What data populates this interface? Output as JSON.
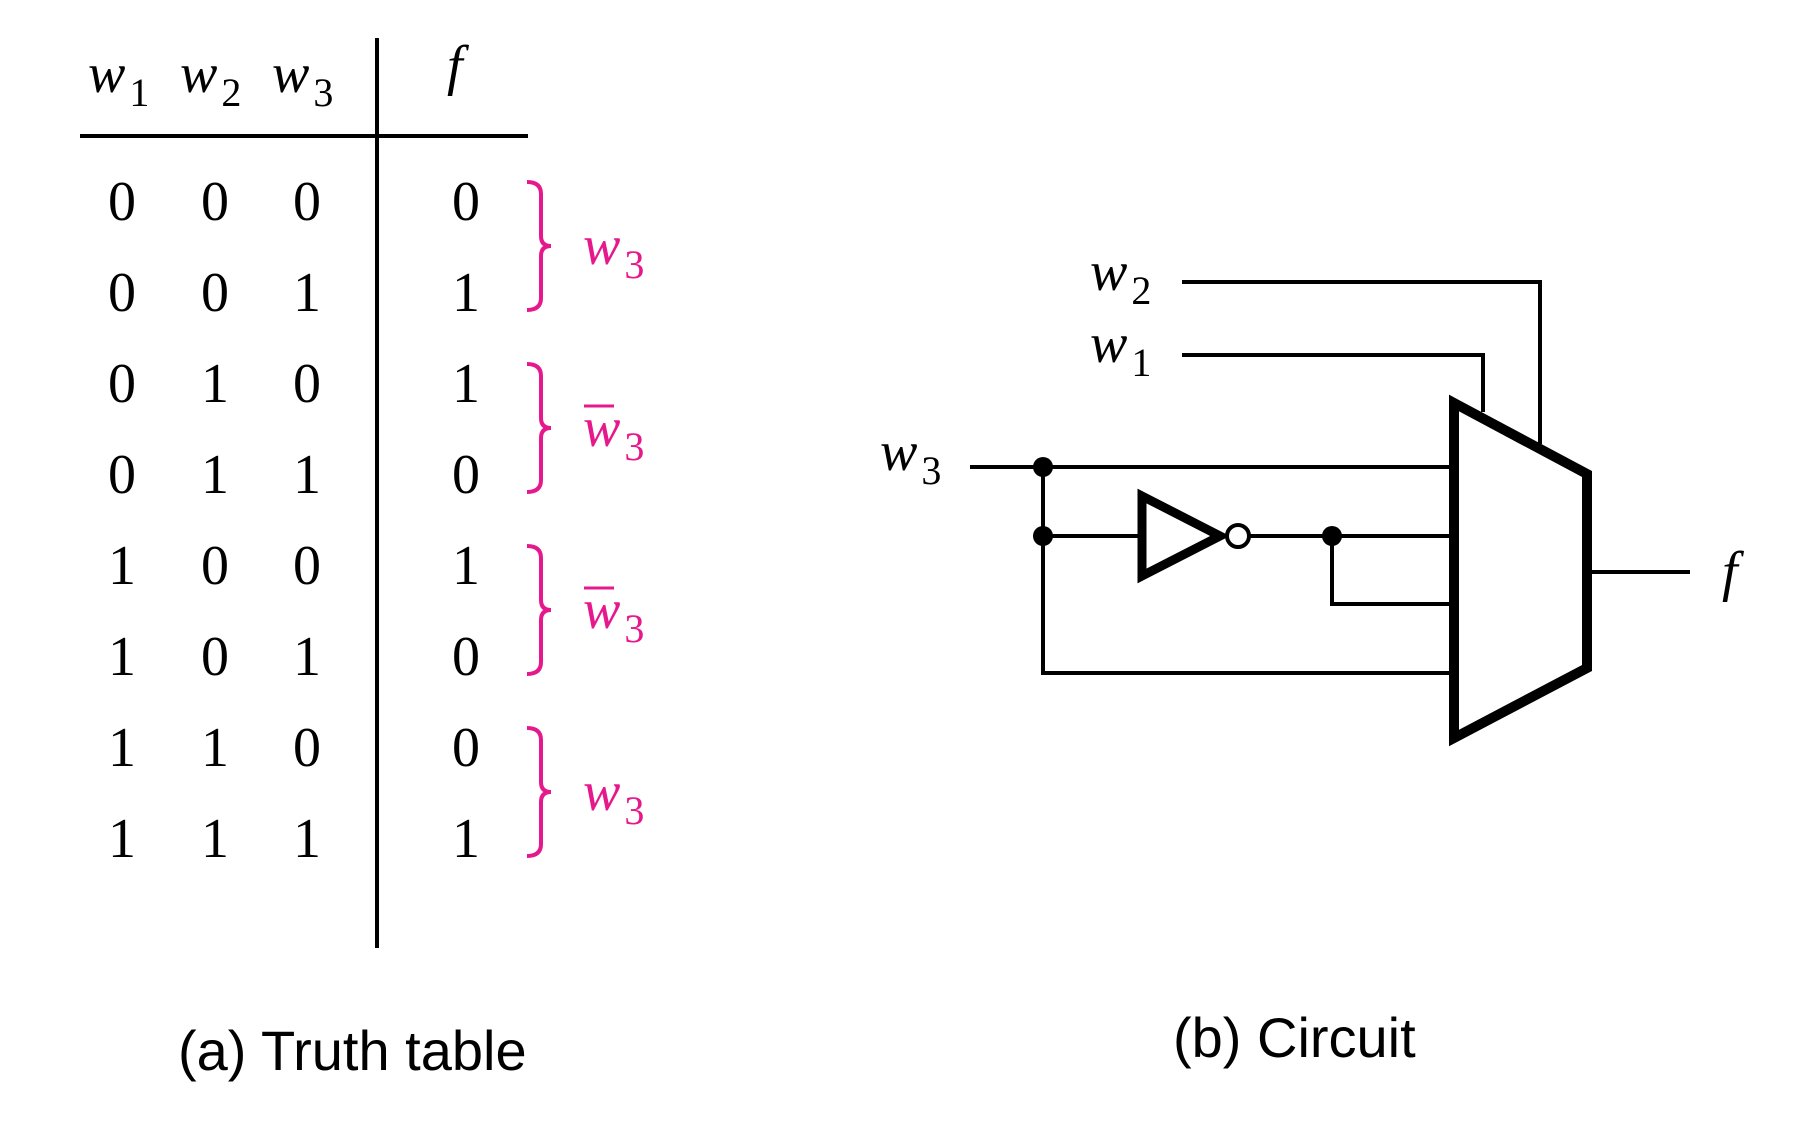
{
  "truth_table": {
    "headers": [
      {
        "var": "w",
        "sub": "1"
      },
      {
        "var": "w",
        "sub": "2"
      },
      {
        "var": "w",
        "sub": "3"
      }
    ],
    "output_header": "f",
    "rows": [
      {
        "inputs": [
          "0",
          "0",
          "0"
        ],
        "f": "0"
      },
      {
        "inputs": [
          "0",
          "0",
          "1"
        ],
        "f": "1"
      },
      {
        "inputs": [
          "0",
          "1",
          "0"
        ],
        "f": "1"
      },
      {
        "inputs": [
          "0",
          "1",
          "1"
        ],
        "f": "0"
      },
      {
        "inputs": [
          "1",
          "0",
          "0"
        ],
        "f": "1"
      },
      {
        "inputs": [
          "1",
          "0",
          "1"
        ],
        "f": "0"
      },
      {
        "inputs": [
          "1",
          "1",
          "0"
        ],
        "f": "0"
      },
      {
        "inputs": [
          "1",
          "1",
          "1"
        ],
        "f": "1"
      }
    ],
    "annotations": [
      {
        "var": "w",
        "sub": "3",
        "bar": false
      },
      {
        "var": "w",
        "sub": "3",
        "bar": true
      },
      {
        "var": "w",
        "sub": "3",
        "bar": true
      },
      {
        "var": "w",
        "sub": "3",
        "bar": false
      }
    ],
    "annotation_color": "#e6198c"
  },
  "circuit": {
    "labels": {
      "w2": {
        "var": "w",
        "sub": "2"
      },
      "w1": {
        "var": "w",
        "sub": "1"
      },
      "w3": {
        "var": "w",
        "sub": "3"
      },
      "f": "f"
    }
  },
  "captions": {
    "a": "(a) Truth table",
    "b": "(b) Circuit"
  }
}
